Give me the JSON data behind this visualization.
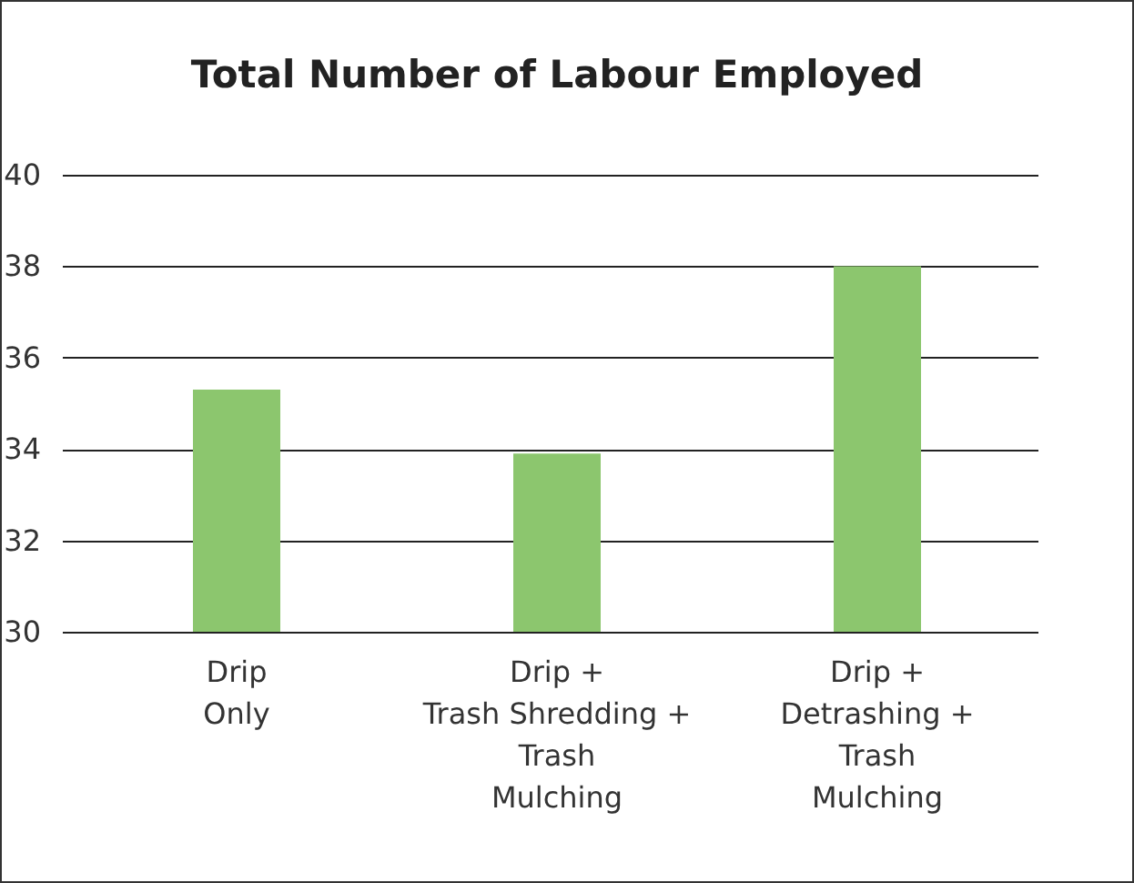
{
  "chart_data": {
    "type": "bar",
    "title": "Total Number of Labour Employed",
    "categories": [
      "Drip\nOnly",
      "Drip +\nTrash Shredding +\nTrash\nMulching",
      "Drip +\nDetrashing +\nTrash\nMulching"
    ],
    "values": [
      35.3,
      33.9,
      38.0
    ],
    "color": "#8cc66e",
    "ylim": [
      30,
      40
    ],
    "yticks": [
      30,
      32,
      34,
      36,
      38,
      40
    ],
    "grid": "y"
  }
}
